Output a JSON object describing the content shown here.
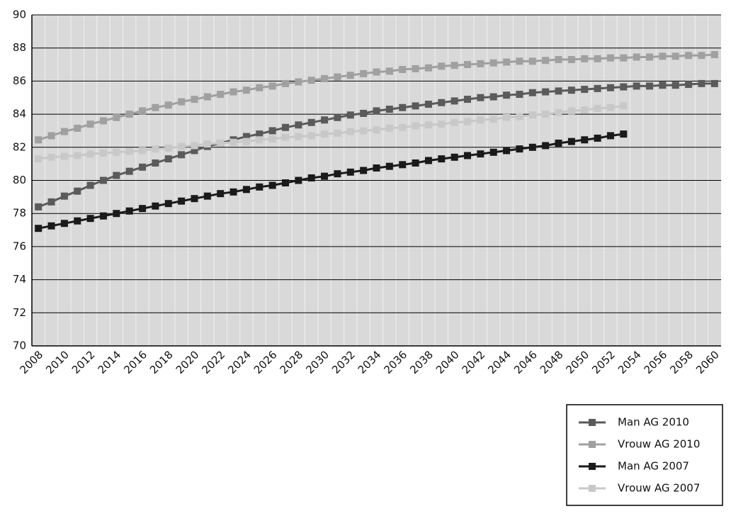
{
  "chart_data": {
    "type": "line",
    "categories": [
      "2008",
      null,
      "2010",
      null,
      "2012",
      null,
      "2014",
      null,
      "2016",
      null,
      "2018",
      null,
      "2020",
      null,
      "2022",
      null,
      "2024",
      null,
      "2026",
      null,
      "2028",
      null,
      "2030",
      null,
      "2032",
      null,
      "2034",
      null,
      "2036",
      null,
      "2038",
      null,
      "2040",
      null,
      "2042",
      null,
      "2044",
      null,
      "2046",
      null,
      "2048",
      null,
      "2050",
      null,
      "2052",
      null,
      "2054",
      null,
      "2056",
      null,
      "2058",
      null,
      "2060"
    ],
    "series": [
      {
        "name": "Man AG 2010",
        "color": "#5a5a5a",
        "values": [
          78.4,
          78.7,
          79.05,
          79.35,
          79.7,
          80.0,
          80.3,
          80.55,
          80.8,
          81.05,
          81.3,
          81.55,
          81.8,
          82.05,
          82.25,
          82.45,
          82.65,
          82.8,
          83.0,
          83.2,
          83.35,
          83.5,
          83.65,
          83.8,
          83.95,
          84.05,
          84.2,
          84.3,
          84.4,
          84.5,
          84.6,
          84.7,
          84.8,
          84.9,
          85.0,
          85.05,
          85.15,
          85.2,
          85.3,
          85.35,
          85.4,
          85.45,
          85.5,
          85.55,
          85.6,
          85.65,
          85.7,
          85.7,
          85.75,
          85.75,
          85.8,
          85.85,
          85.85
        ]
      },
      {
        "name": "Vrouw AG 2010",
        "color": "#a0a0a0",
        "values": [
          82.45,
          82.7,
          82.95,
          83.15,
          83.4,
          83.6,
          83.8,
          84.0,
          84.2,
          84.4,
          84.55,
          84.75,
          84.9,
          85.05,
          85.2,
          85.35,
          85.45,
          85.6,
          85.7,
          85.85,
          85.95,
          86.05,
          86.15,
          86.25,
          86.35,
          86.45,
          86.55,
          86.6,
          86.7,
          86.75,
          86.8,
          86.9,
          86.95,
          87.0,
          87.05,
          87.1,
          87.15,
          87.2,
          87.2,
          87.25,
          87.3,
          87.3,
          87.35,
          87.35,
          87.4,
          87.4,
          87.45,
          87.45,
          87.5,
          87.5,
          87.55,
          87.55,
          87.6
        ]
      },
      {
        "name": "Man AG 2007",
        "color": "#1a1a1a",
        "values": [
          77.1,
          77.25,
          77.4,
          77.55,
          77.7,
          77.85,
          78.0,
          78.15,
          78.3,
          78.45,
          78.6,
          78.75,
          78.9,
          79.05,
          79.2,
          79.3,
          79.45,
          79.6,
          79.7,
          79.85,
          80.0,
          80.15,
          80.25,
          80.4,
          80.5,
          80.6,
          80.75,
          80.85,
          80.95,
          81.05,
          81.2,
          81.3,
          81.4,
          81.5,
          81.6,
          81.7,
          81.8,
          81.9,
          82.0,
          82.1,
          82.25,
          82.35,
          82.45,
          82.55,
          82.7,
          82.8,
          null,
          null,
          null,
          null,
          null,
          null,
          null
        ]
      },
      {
        "name": "Vrouw AG 2007",
        "color": "#c8c8c8",
        "values": [
          81.3,
          81.4,
          81.45,
          81.5,
          81.6,
          81.65,
          81.7,
          81.75,
          81.8,
          81.9,
          81.95,
          82.05,
          82.1,
          82.2,
          82.25,
          82.3,
          82.35,
          82.45,
          82.5,
          82.6,
          82.65,
          82.7,
          82.8,
          82.85,
          82.95,
          83.0,
          83.05,
          83.15,
          83.2,
          83.3,
          83.35,
          83.4,
          83.5,
          83.55,
          83.65,
          83.7,
          83.8,
          83.85,
          83.95,
          84.0,
          84.1,
          84.2,
          84.25,
          84.35,
          84.4,
          84.5,
          null,
          null,
          null,
          null,
          null,
          null,
          null
        ]
      }
    ],
    "ylim": [
      70,
      90
    ],
    "yticks": [
      70,
      72,
      74,
      76,
      78,
      80,
      82,
      84,
      86,
      88,
      90
    ],
    "grid": true
  }
}
